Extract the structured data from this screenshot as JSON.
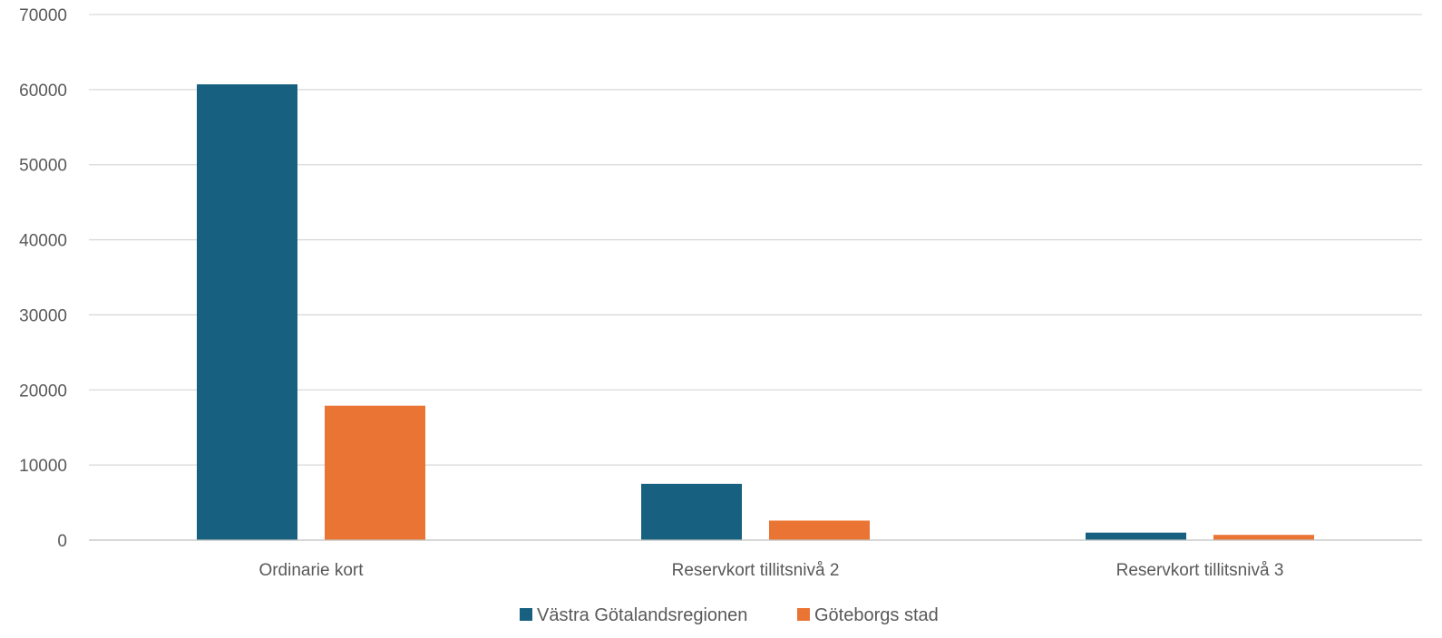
{
  "chart_data": {
    "type": "bar",
    "title": "",
    "xlabel": "",
    "ylabel": "",
    "categories": [
      "Ordinarie kort",
      "Reservkort tillitsnivå 2",
      "Reservkort tillitsnivå 3"
    ],
    "series": [
      {
        "name": "Västra Götalandsregionen",
        "color": "#17607f",
        "values": [
          60700,
          7500,
          1000
        ]
      },
      {
        "name": "Göteborgs stad",
        "color": "#ea7434",
        "values": [
          17900,
          2600,
          700
        ]
      }
    ],
    "ylim": [
      0,
      70000
    ],
    "yticks": [
      0,
      10000,
      20000,
      30000,
      40000,
      50000,
      60000,
      70000
    ],
    "grid": true,
    "legend": "bottom-center"
  }
}
